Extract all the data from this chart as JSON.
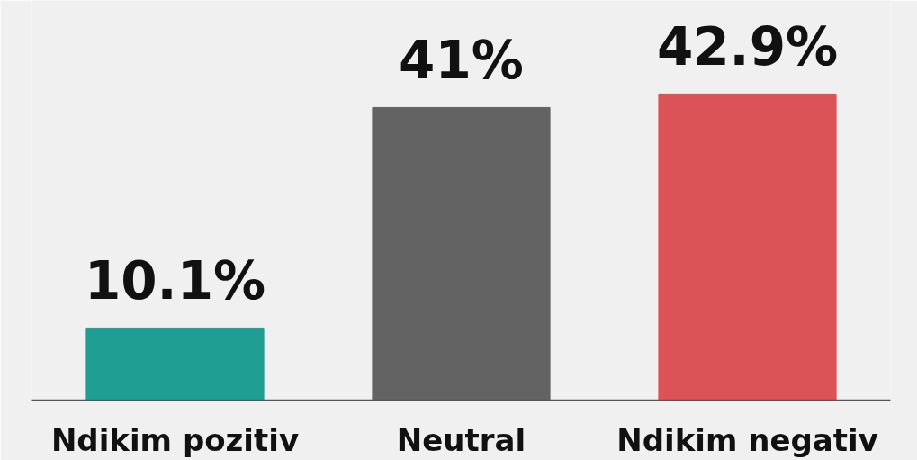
{
  "chart_data": {
    "type": "bar",
    "categories": [
      "Ndikim pozitiv",
      "Neutral",
      "Ndikim negativ"
    ],
    "values": [
      10.1,
      41,
      42.9
    ],
    "colors": [
      "#1f9e94",
      "#636363",
      "#dc5357"
    ],
    "value_labels": [
      "10.1%",
      "41%",
      "42.9%"
    ],
    "ylim": [
      0,
      56
    ],
    "tick_labels": "x",
    "grid": false
  }
}
